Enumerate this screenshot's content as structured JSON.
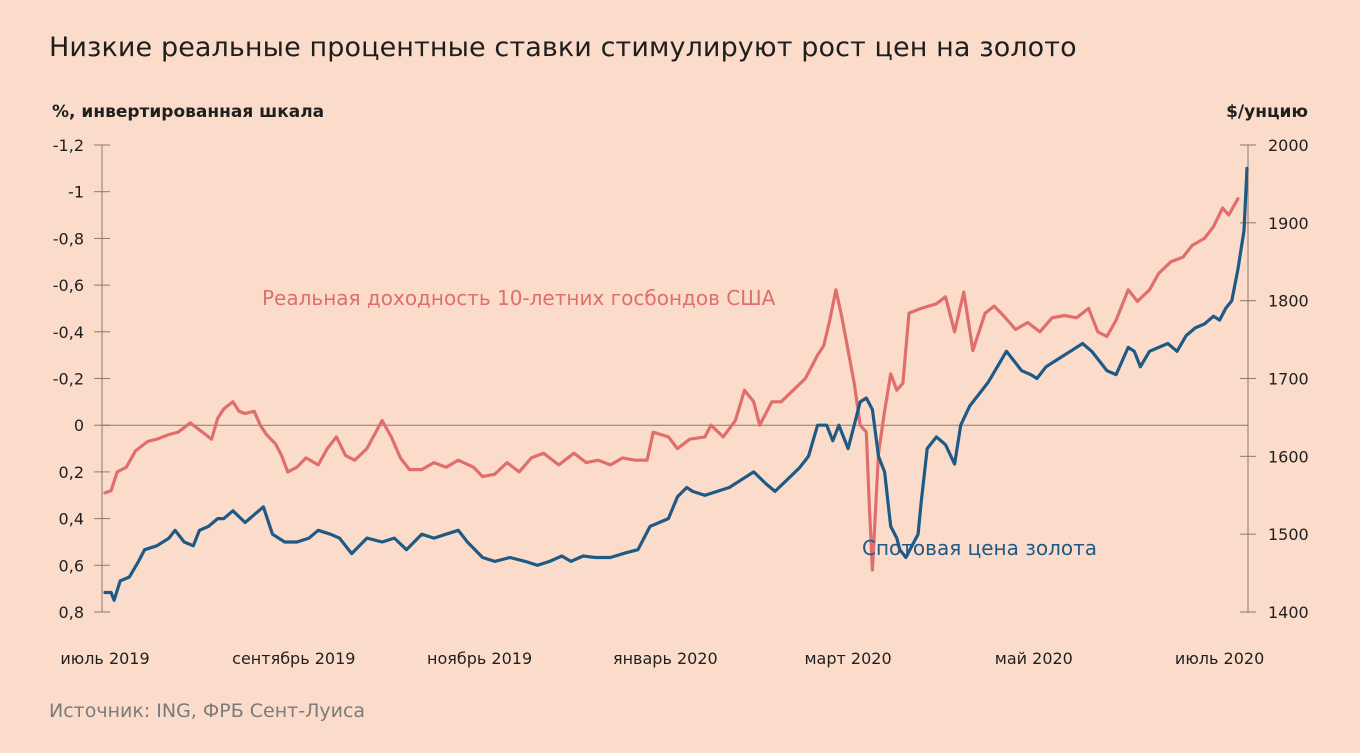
{
  "title": "Низкие реальные процентные ставки стимулируют рост цен на золото",
  "source": "Источник: ING, ФРБ Сент-Луиса",
  "chart_data": {
    "type": "line",
    "left_axis": {
      "label": "%, инвертированная шкала",
      "inverted": true,
      "range": [
        -1.2,
        0.8
      ],
      "ticks": [
        -1.2,
        -1.0,
        -0.8,
        -0.6,
        -0.4,
        -0.2,
        0,
        0.2,
        0.4,
        0.6,
        0.8
      ],
      "tick_labels": [
        "-1,2",
        "-1",
        "-0,8",
        "-0,6",
        "-0,4",
        "-0,2",
        "0",
        "0,2",
        "0,4",
        "0,6",
        "0,8"
      ]
    },
    "right_axis": {
      "label": "$/унцию",
      "range": [
        1400,
        2000
      ],
      "ticks": [
        1400,
        1500,
        1600,
        1700,
        1800,
        1900,
        2000
      ],
      "tick_labels": [
        "1400",
        "1500",
        "1600",
        "1700",
        "1800",
        "1900",
        "2000"
      ]
    },
    "x_axis": {
      "range": [
        "2019-07-01",
        "2020-07-10"
      ],
      "ticks": [
        "2019-07-01",
        "2019-09-01",
        "2019-11-01",
        "2020-01-01",
        "2020-03-01",
        "2020-05-01",
        "2020-07-01"
      ],
      "tick_labels": [
        "июль 2019",
        "сентябрь 2019",
        "ноябрь 2019",
        "январь 2020",
        "март 2020",
        "май 2020",
        "июль 2020"
      ]
    },
    "reference_line": 0,
    "series": [
      {
        "name": "Реальная доходность 10-летних госбондов США",
        "axis": "left",
        "color": "#e06e6c",
        "points": [
          [
            "2019-07-01",
            0.29
          ],
          [
            "2019-07-03",
            0.28
          ],
          [
            "2019-07-05",
            0.2
          ],
          [
            "2019-07-08",
            0.18
          ],
          [
            "2019-07-11",
            0.11
          ],
          [
            "2019-07-15",
            0.07
          ],
          [
            "2019-07-18",
            0.06
          ],
          [
            "2019-07-22",
            0.04
          ],
          [
            "2019-07-25",
            0.03
          ],
          [
            "2019-07-29",
            -0.01
          ],
          [
            "2019-08-01",
            0.02
          ],
          [
            "2019-08-03",
            0.04
          ],
          [
            "2019-08-05",
            0.06
          ],
          [
            "2019-08-07",
            -0.03
          ],
          [
            "2019-08-09",
            -0.07
          ],
          [
            "2019-08-12",
            -0.1
          ],
          [
            "2019-08-14",
            -0.06
          ],
          [
            "2019-08-16",
            -0.05
          ],
          [
            "2019-08-19",
            -0.06
          ],
          [
            "2019-08-21",
            0.0
          ],
          [
            "2019-08-23",
            0.04
          ],
          [
            "2019-08-26",
            0.08
          ],
          [
            "2019-08-28",
            0.13
          ],
          [
            "2019-08-30",
            0.2
          ],
          [
            "2019-09-02",
            0.18
          ],
          [
            "2019-09-05",
            0.14
          ],
          [
            "2019-09-09",
            0.17
          ],
          [
            "2019-09-12",
            0.1
          ],
          [
            "2019-09-15",
            0.05
          ],
          [
            "2019-09-18",
            0.13
          ],
          [
            "2019-09-21",
            0.15
          ],
          [
            "2019-09-25",
            0.1
          ],
          [
            "2019-09-30",
            -0.02
          ],
          [
            "2019-10-03",
            0.05
          ],
          [
            "2019-10-06",
            0.14
          ],
          [
            "2019-10-09",
            0.19
          ],
          [
            "2019-10-13",
            0.19
          ],
          [
            "2019-10-17",
            0.16
          ],
          [
            "2019-10-21",
            0.18
          ],
          [
            "2019-10-25",
            0.15
          ],
          [
            "2019-10-30",
            0.18
          ],
          [
            "2019-11-02",
            0.22
          ],
          [
            "2019-11-06",
            0.21
          ],
          [
            "2019-11-10",
            0.16
          ],
          [
            "2019-11-14",
            0.2
          ],
          [
            "2019-11-18",
            0.14
          ],
          [
            "2019-11-22",
            0.12
          ],
          [
            "2019-11-27",
            0.17
          ],
          [
            "2019-12-02",
            0.12
          ],
          [
            "2019-12-06",
            0.16
          ],
          [
            "2019-12-10",
            0.15
          ],
          [
            "2019-12-14",
            0.17
          ],
          [
            "2019-12-18",
            0.14
          ],
          [
            "2019-12-22",
            0.15
          ],
          [
            "2019-12-26",
            0.15
          ],
          [
            "2019-12-28",
            0.03
          ],
          [
            "2020-01-02",
            0.05
          ],
          [
            "2020-01-05",
            0.1
          ],
          [
            "2020-01-09",
            0.06
          ],
          [
            "2020-01-14",
            0.05
          ],
          [
            "2020-01-16",
            0.0
          ],
          [
            "2020-01-20",
            0.05
          ],
          [
            "2020-01-24",
            -0.02
          ],
          [
            "2020-01-27",
            -0.15
          ],
          [
            "2020-01-30",
            -0.1
          ],
          [
            "2020-02-01",
            0.0
          ],
          [
            "2020-02-05",
            -0.1
          ],
          [
            "2020-02-08",
            -0.1
          ],
          [
            "2020-02-12",
            -0.15
          ],
          [
            "2020-02-16",
            -0.2
          ],
          [
            "2020-02-20",
            -0.3
          ],
          [
            "2020-02-22",
            -0.34
          ],
          [
            "2020-02-24",
            -0.45
          ],
          [
            "2020-02-26",
            -0.58
          ],
          [
            "2020-02-28",
            -0.46
          ],
          [
            "2020-03-03",
            -0.18
          ],
          [
            "2020-03-05",
            0.0
          ],
          [
            "2020-03-07",
            0.03
          ],
          [
            "2020-03-08",
            0.35
          ],
          [
            "2020-03-09",
            0.62
          ],
          [
            "2020-03-11",
            0.12
          ],
          [
            "2020-03-13",
            -0.06
          ],
          [
            "2020-03-15",
            -0.22
          ],
          [
            "2020-03-17",
            -0.15
          ],
          [
            "2020-03-19",
            -0.18
          ],
          [
            "2020-03-21",
            -0.48
          ],
          [
            "2020-03-25",
            -0.5
          ],
          [
            "2020-03-30",
            -0.52
          ],
          [
            "2020-04-02",
            -0.55
          ],
          [
            "2020-04-05",
            -0.4
          ],
          [
            "2020-04-08",
            -0.57
          ],
          [
            "2020-04-11",
            -0.32
          ],
          [
            "2020-04-15",
            -0.48
          ],
          [
            "2020-04-18",
            -0.51
          ],
          [
            "2020-04-21",
            -0.47
          ],
          [
            "2020-04-25",
            -0.41
          ],
          [
            "2020-04-29",
            -0.44
          ],
          [
            "2020-05-03",
            -0.4
          ],
          [
            "2020-05-07",
            -0.46
          ],
          [
            "2020-05-11",
            -0.47
          ],
          [
            "2020-05-15",
            -0.46
          ],
          [
            "2020-05-19",
            -0.5
          ],
          [
            "2020-05-22",
            -0.4
          ],
          [
            "2020-05-25",
            -0.38
          ],
          [
            "2020-05-28",
            -0.45
          ],
          [
            "2020-06-01",
            -0.58
          ],
          [
            "2020-06-04",
            -0.53
          ],
          [
            "2020-06-08",
            -0.58
          ],
          [
            "2020-06-11",
            -0.65
          ],
          [
            "2020-06-15",
            -0.7
          ],
          [
            "2020-06-19",
            -0.72
          ],
          [
            "2020-06-22",
            -0.77
          ],
          [
            "2020-06-26",
            -0.8
          ],
          [
            "2020-06-29",
            -0.85
          ],
          [
            "2020-07-02",
            -0.93
          ],
          [
            "2020-07-04",
            -0.9
          ],
          [
            "2020-07-07",
            -0.97
          ]
        ]
      },
      {
        "name": "Спотовая цена золота",
        "axis": "right",
        "color": "#1f5a86",
        "points": [
          [
            "2019-07-01",
            1425
          ],
          [
            "2019-07-03",
            1425
          ],
          [
            "2019-07-04",
            1415
          ],
          [
            "2019-07-06",
            1440
          ],
          [
            "2019-07-09",
            1445
          ],
          [
            "2019-07-12",
            1465
          ],
          [
            "2019-07-14",
            1480
          ],
          [
            "2019-07-18",
            1485
          ],
          [
            "2019-07-22",
            1495
          ],
          [
            "2019-07-24",
            1505
          ],
          [
            "2019-07-27",
            1490
          ],
          [
            "2019-07-30",
            1485
          ],
          [
            "2019-08-01",
            1505
          ],
          [
            "2019-08-04",
            1510
          ],
          [
            "2019-08-07",
            1520
          ],
          [
            "2019-08-09",
            1520
          ],
          [
            "2019-08-12",
            1530
          ],
          [
            "2019-08-16",
            1515
          ],
          [
            "2019-08-19",
            1525
          ],
          [
            "2019-08-22",
            1535
          ],
          [
            "2019-08-25",
            1500
          ],
          [
            "2019-08-29",
            1490
          ],
          [
            "2019-09-02",
            1490
          ],
          [
            "2019-09-06",
            1495
          ],
          [
            "2019-09-09",
            1505
          ],
          [
            "2019-09-13",
            1500
          ],
          [
            "2019-09-16",
            1495
          ],
          [
            "2019-09-20",
            1475
          ],
          [
            "2019-09-25",
            1495
          ],
          [
            "2019-09-30",
            1490
          ],
          [
            "2019-10-04",
            1495
          ],
          [
            "2019-10-08",
            1480
          ],
          [
            "2019-10-13",
            1500
          ],
          [
            "2019-10-17",
            1495
          ],
          [
            "2019-10-21",
            1500
          ],
          [
            "2019-10-25",
            1505
          ],
          [
            "2019-10-28",
            1490
          ],
          [
            "2019-11-02",
            1470
          ],
          [
            "2019-11-06",
            1465
          ],
          [
            "2019-11-11",
            1470
          ],
          [
            "2019-11-16",
            1465
          ],
          [
            "2019-11-20",
            1460
          ],
          [
            "2019-11-24",
            1465
          ],
          [
            "2019-11-28",
            1472
          ],
          [
            "2019-12-01",
            1465
          ],
          [
            "2019-12-05",
            1472
          ],
          [
            "2019-12-09",
            1470
          ],
          [
            "2019-12-14",
            1470
          ],
          [
            "2019-12-19",
            1476
          ],
          [
            "2019-12-23",
            1480
          ],
          [
            "2019-12-27",
            1510
          ],
          [
            "2020-01-02",
            1520
          ],
          [
            "2020-01-05",
            1548
          ],
          [
            "2020-01-08",
            1560
          ],
          [
            "2020-01-10",
            1555
          ],
          [
            "2020-01-14",
            1550
          ],
          [
            "2020-01-18",
            1555
          ],
          [
            "2020-01-22",
            1560
          ],
          [
            "2020-01-26",
            1570
          ],
          [
            "2020-01-30",
            1580
          ],
          [
            "2020-02-03",
            1565
          ],
          [
            "2020-02-06",
            1555
          ],
          [
            "2020-02-10",
            1570
          ],
          [
            "2020-02-14",
            1585
          ],
          [
            "2020-02-17",
            1600
          ],
          [
            "2020-02-20",
            1640
          ],
          [
            "2020-02-23",
            1640
          ],
          [
            "2020-02-25",
            1620
          ],
          [
            "2020-02-27",
            1640
          ],
          [
            "2020-03-01",
            1610
          ],
          [
            "2020-03-03",
            1640
          ],
          [
            "2020-03-05",
            1670
          ],
          [
            "2020-03-07",
            1675
          ],
          [
            "2020-03-09",
            1660
          ],
          [
            "2020-03-11",
            1600
          ],
          [
            "2020-03-13",
            1580
          ],
          [
            "2020-03-15",
            1510
          ],
          [
            "2020-03-17",
            1495
          ],
          [
            "2020-03-18",
            1480
          ],
          [
            "2020-03-19",
            1475
          ],
          [
            "2020-03-20",
            1470
          ],
          [
            "2020-03-22",
            1485
          ],
          [
            "2020-03-24",
            1500
          ],
          [
            "2020-03-25",
            1540
          ],
          [
            "2020-03-27",
            1610
          ],
          [
            "2020-03-30",
            1625
          ],
          [
            "2020-04-02",
            1615
          ],
          [
            "2020-04-05",
            1590
          ],
          [
            "2020-04-07",
            1640
          ],
          [
            "2020-04-10",
            1665
          ],
          [
            "2020-04-13",
            1680
          ],
          [
            "2020-04-16",
            1695
          ],
          [
            "2020-04-19",
            1715
          ],
          [
            "2020-04-22",
            1735
          ],
          [
            "2020-04-24",
            1725
          ],
          [
            "2020-04-27",
            1710
          ],
          [
            "2020-04-30",
            1705
          ],
          [
            "2020-05-02",
            1700
          ],
          [
            "2020-05-05",
            1715
          ],
          [
            "2020-05-09",
            1725
          ],
          [
            "2020-05-13",
            1735
          ],
          [
            "2020-05-17",
            1745
          ],
          [
            "2020-05-20",
            1735
          ],
          [
            "2020-05-22",
            1725
          ],
          [
            "2020-05-25",
            1710
          ],
          [
            "2020-05-28",
            1705
          ],
          [
            "2020-06-01",
            1740
          ],
          [
            "2020-06-03",
            1735
          ],
          [
            "2020-06-05",
            1715
          ],
          [
            "2020-06-08",
            1735
          ],
          [
            "2020-06-11",
            1740
          ],
          [
            "2020-06-14",
            1745
          ],
          [
            "2020-06-17",
            1735
          ],
          [
            "2020-06-20",
            1755
          ],
          [
            "2020-06-23",
            1765
          ],
          [
            "2020-06-26",
            1770
          ],
          [
            "2020-06-29",
            1780
          ],
          [
            "2020-07-01",
            1775
          ],
          [
            "2020-07-03",
            1790
          ],
          [
            "2020-07-05",
            1800
          ],
          [
            "2020-07-07",
            1840
          ],
          [
            "2020-07-09",
            1890
          ],
          [
            "2020-07-10",
            1970
          ]
        ]
      }
    ]
  }
}
